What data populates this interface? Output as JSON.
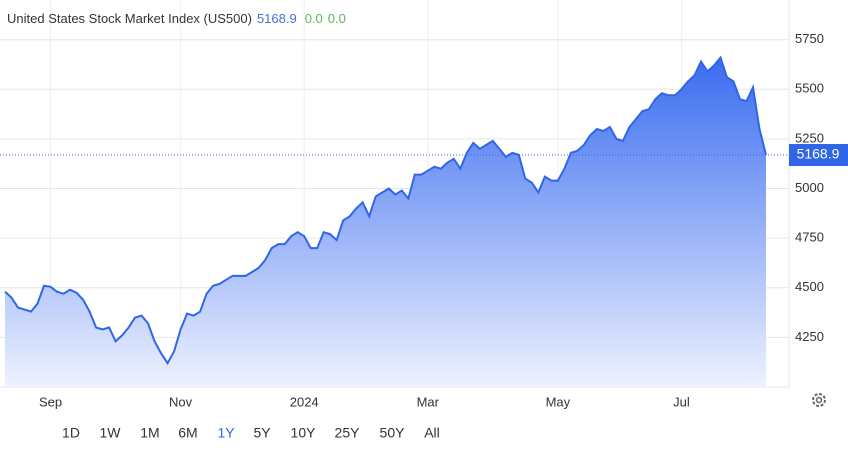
{
  "chart_data": {
    "type": "area",
    "title": "United States Stock Market Index (US500)",
    "change": "0.0",
    "change_percent": "0.0",
    "categories": [
      null,
      null,
      null,
      null,
      null,
      null,
      null,
      "Sep",
      null,
      null,
      null,
      null,
      null,
      null,
      null,
      null,
      null,
      null,
      null,
      null,
      null,
      null,
      null,
      null,
      null,
      null,
      null,
      "Nov",
      null,
      null,
      null,
      null,
      null,
      null,
      null,
      null,
      null,
      null,
      null,
      null,
      null,
      null,
      null,
      null,
      null,
      null,
      "2024",
      null,
      null,
      null,
      null,
      null,
      null,
      null,
      null,
      null,
      null,
      null,
      null,
      null,
      null,
      null,
      null,
      null,
      null,
      "Mar",
      null,
      null,
      null,
      null,
      null,
      null,
      null,
      null,
      null,
      null,
      null,
      null,
      null,
      null,
      null,
      null,
      null,
      null,
      null,
      "May",
      null,
      null,
      null,
      null,
      null,
      null,
      null,
      null,
      null,
      null,
      null,
      null,
      null,
      null,
      null,
      null,
      null,
      null,
      "Jul",
      null,
      null,
      null,
      null,
      null,
      null,
      null,
      null,
      null,
      null,
      null,
      null,
      null
    ],
    "series": [
      {
        "name": "US500",
        "color": "#2f66e8",
        "values": [
          4480,
          4450,
          4400,
          4390,
          4380,
          4420,
          4510,
          4505,
          4480,
          4470,
          4490,
          4475,
          4440,
          4380,
          4300,
          4290,
          4300,
          4230,
          4260,
          4300,
          4350,
          4360,
          4320,
          4230,
          4170,
          4120,
          4180,
          4290,
          4370,
          4360,
          4380,
          4470,
          4510,
          4520,
          4540,
          4560,
          4560,
          4560,
          4580,
          4600,
          4640,
          4700,
          4720,
          4720,
          4760,
          4780,
          4760,
          4700,
          4700,
          4780,
          4770,
          4740,
          4840,
          4860,
          4900,
          4930,
          4860,
          4960,
          4980,
          5000,
          4970,
          4990,
          4950,
          5070,
          5070,
          5090,
          5110,
          5100,
          5130,
          5150,
          5100,
          5180,
          5230,
          5200,
          5220,
          5240,
          5200,
          5160,
          5180,
          5170,
          5050,
          5030,
          4980,
          5060,
          5040,
          5040,
          5100,
          5180,
          5190,
          5220,
          5270,
          5300,
          5290,
          5310,
          5250,
          5240,
          5310,
          5350,
          5390,
          5400,
          5450,
          5480,
          5470,
          5470,
          5500,
          5540,
          5570,
          5640,
          5590,
          5620,
          5660,
          5560,
          5540,
          5450,
          5440,
          5510,
          5300,
          5168.9
        ]
      }
    ],
    "ylim": [
      4000,
      5950
    ],
    "yticks": [
      4250,
      4500,
      4750,
      5000,
      5250,
      5500,
      5750
    ],
    "grid": true,
    "range_buttons": [
      "1D",
      "1W",
      "1M",
      "6M",
      "1Y",
      "5Y",
      "10Y",
      "25Y",
      "50Y",
      "All"
    ],
    "active_range": 4
  }
}
